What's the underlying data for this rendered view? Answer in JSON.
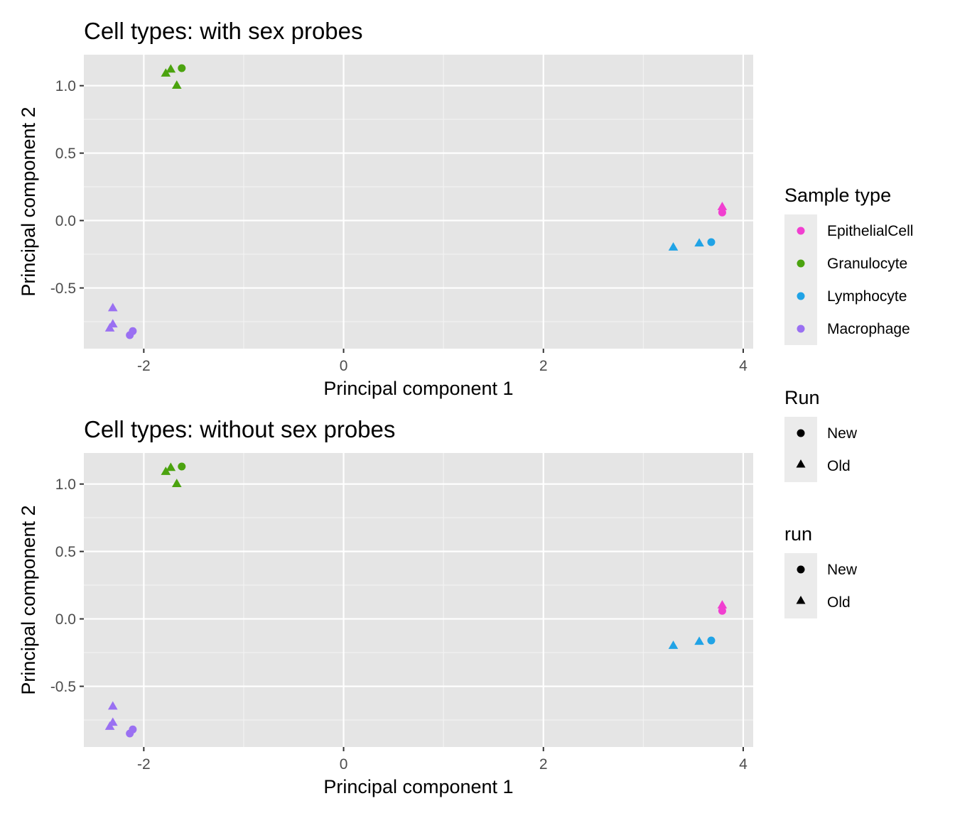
{
  "chart_data": [
    {
      "type": "scatter",
      "title": "Cell types: with sex probes",
      "xlabel": "Principal component 1",
      "ylabel": "Principal component 2",
      "xlim": [
        -2.6,
        4.1
      ],
      "ylim": [
        -0.95,
        1.23
      ],
      "x_ticks": [
        -2,
        0,
        2,
        4
      ],
      "x_tick_labels": [
        "-2",
        "0",
        "2",
        "4"
      ],
      "y_ticks": [
        -0.5,
        0.0,
        0.5,
        1.0
      ],
      "y_tick_labels": [
        "-0.5",
        "0.0",
        "0.5",
        "1.0"
      ],
      "grid": true,
      "points": [
        {
          "x": -1.78,
          "y": 1.09,
          "group": "Granulocyte",
          "run": "Old"
        },
        {
          "x": -1.73,
          "y": 1.12,
          "group": "Granulocyte",
          "run": "Old"
        },
        {
          "x": -1.67,
          "y": 1.0,
          "group": "Granulocyte",
          "run": "Old"
        },
        {
          "x": -1.62,
          "y": 1.13,
          "group": "Granulocyte",
          "run": "New"
        },
        {
          "x": 3.3,
          "y": -0.2,
          "group": "Lymphocyte",
          "run": "Old"
        },
        {
          "x": 3.56,
          "y": -0.17,
          "group": "Lymphocyte",
          "run": "Old"
        },
        {
          "x": 3.68,
          "y": -0.16,
          "group": "Lymphocyte",
          "run": "New"
        },
        {
          "x": 3.79,
          "y": 0.1,
          "group": "EpithelialCell",
          "run": "Old"
        },
        {
          "x": 3.79,
          "y": 0.06,
          "group": "EpithelialCell",
          "run": "New"
        },
        {
          "x": -2.31,
          "y": -0.65,
          "group": "Macrophage",
          "run": "Old"
        },
        {
          "x": -2.31,
          "y": -0.77,
          "group": "Macrophage",
          "run": "Old"
        },
        {
          "x": -2.34,
          "y": -0.8,
          "group": "Macrophage",
          "run": "Old"
        },
        {
          "x": -2.11,
          "y": -0.82,
          "group": "Macrophage",
          "run": "New"
        },
        {
          "x": -2.14,
          "y": -0.85,
          "group": "Macrophage",
          "run": "New"
        }
      ]
    },
    {
      "type": "scatter",
      "title": "Cell types: without sex probes",
      "xlabel": "Principal component 1",
      "ylabel": "Principal component 2",
      "xlim": [
        -2.6,
        4.1
      ],
      "ylim": [
        -0.95,
        1.23
      ],
      "x_ticks": [
        -2,
        0,
        2,
        4
      ],
      "x_tick_labels": [
        "-2",
        "0",
        "2",
        "4"
      ],
      "y_ticks": [
        -0.5,
        0.0,
        0.5,
        1.0
      ],
      "y_tick_labels": [
        "-0.5",
        "0.0",
        "0.5",
        "1.0"
      ],
      "grid": true,
      "points": [
        {
          "x": -1.78,
          "y": 1.09,
          "group": "Granulocyte",
          "run": "Old"
        },
        {
          "x": -1.73,
          "y": 1.12,
          "group": "Granulocyte",
          "run": "Old"
        },
        {
          "x": -1.67,
          "y": 1.0,
          "group": "Granulocyte",
          "run": "Old"
        },
        {
          "x": -1.62,
          "y": 1.13,
          "group": "Granulocyte",
          "run": "New"
        },
        {
          "x": 3.3,
          "y": -0.2,
          "group": "Lymphocyte",
          "run": "Old"
        },
        {
          "x": 3.56,
          "y": -0.17,
          "group": "Lymphocyte",
          "run": "Old"
        },
        {
          "x": 3.68,
          "y": -0.16,
          "group": "Lymphocyte",
          "run": "New"
        },
        {
          "x": 3.79,
          "y": 0.1,
          "group": "EpithelialCell",
          "run": "Old"
        },
        {
          "x": 3.79,
          "y": 0.06,
          "group": "EpithelialCell",
          "run": "New"
        },
        {
          "x": -2.31,
          "y": -0.65,
          "group": "Macrophage",
          "run": "Old"
        },
        {
          "x": -2.31,
          "y": -0.77,
          "group": "Macrophage",
          "run": "Old"
        },
        {
          "x": -2.34,
          "y": -0.8,
          "group": "Macrophage",
          "run": "Old"
        },
        {
          "x": -2.11,
          "y": -0.82,
          "group": "Macrophage",
          "run": "New"
        },
        {
          "x": -2.14,
          "y": -0.85,
          "group": "Macrophage",
          "run": "New"
        }
      ]
    }
  ],
  "legends": {
    "sample_type": {
      "title": "Sample type",
      "items": [
        {
          "label": "EpithelialCell",
          "color": "#F13FD0"
        },
        {
          "label": "Granulocyte",
          "color": "#4BA30F"
        },
        {
          "label": "Lymphocyte",
          "color": "#20A3E6"
        },
        {
          "label": "Macrophage",
          "color": "#9A70F2"
        }
      ]
    },
    "run_1": {
      "title": "Run",
      "items": [
        {
          "label": "New",
          "shape": "circle"
        },
        {
          "label": "Old",
          "shape": "triangle"
        }
      ]
    },
    "run_2": {
      "title": "run",
      "items": [
        {
          "label": "New",
          "shape": "circle"
        },
        {
          "label": "Old",
          "shape": "triangle"
        }
      ]
    }
  },
  "colors": {
    "panel_background": "#E5E5E5",
    "grid": "#FFFFFF",
    "tick_label": "#4D4D4D",
    "legend_key_background": "#EBEBEB"
  }
}
